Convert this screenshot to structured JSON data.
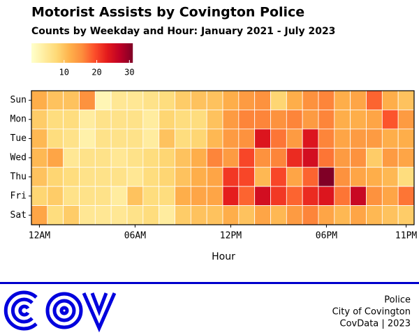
{
  "chart_data": {
    "type": "heatmap",
    "title": "Motorist Assists by Covington Police",
    "subtitle": "Counts by Weekday and Hour: January 2021 - July 2023",
    "x_label": "Hour",
    "x": [
      0,
      1,
      2,
      3,
      4,
      5,
      6,
      7,
      8,
      9,
      10,
      11,
      12,
      13,
      14,
      15,
      16,
      17,
      18,
      19,
      20,
      21,
      22,
      23
    ],
    "xlim": [
      -0.5,
      23.5
    ],
    "xticks": [
      {
        "value": 0,
        "label": "12AM"
      },
      {
        "value": 6,
        "label": "06AM"
      },
      {
        "value": 12,
        "label": "12PM"
      },
      {
        "value": 18,
        "label": "06PM"
      },
      {
        "value": 23,
        "label": "11PM"
      }
    ],
    "categories": [
      "Sun",
      "Mon",
      "Tue",
      "Wed",
      "Thu",
      "Fri",
      "Sat"
    ],
    "values": [
      [
        12,
        10,
        10,
        15,
        2,
        5,
        5,
        6,
        7,
        9,
        10,
        10,
        12,
        14,
        15,
        8,
        12,
        15,
        16,
        12,
        13,
        18,
        12,
        10
      ],
      [
        9,
        7,
        7,
        4,
        6,
        6,
        6,
        4,
        8,
        7,
        7,
        10,
        14,
        16,
        16,
        15,
        16,
        14,
        16,
        12,
        12,
        13,
        19,
        14
      ],
      [
        11,
        7,
        6,
        3,
        6,
        6,
        6,
        4,
        10,
        7,
        8,
        11,
        14,
        15,
        24,
        17,
        14,
        24,
        16,
        13,
        14,
        14,
        12,
        12
      ],
      [
        11,
        13,
        5,
        6,
        6,
        5,
        6,
        7,
        8,
        10,
        12,
        16,
        14,
        20,
        15,
        16,
        22,
        25,
        17,
        14,
        15,
        9,
        14,
        13
      ],
      [
        10,
        8,
        7,
        6,
        6,
        6,
        5,
        7,
        8,
        10,
        12,
        13,
        21,
        20,
        11,
        20,
        13,
        18,
        31,
        15,
        13,
        12,
        11,
        7
      ],
      [
        8,
        9,
        6,
        6,
        6,
        4,
        10,
        7,
        7,
        12,
        13,
        13,
        23,
        18,
        25,
        21,
        18,
        22,
        24,
        17,
        26,
        15,
        13,
        17
      ],
      [
        13,
        7,
        9,
        5,
        5,
        5,
        6,
        7,
        4,
        9,
        10,
        10,
        12,
        10,
        13,
        11,
        14,
        16,
        13,
        11,
        13,
        11,
        10,
        9
      ]
    ],
    "colors": [
      "#ffffcc",
      "#ffeda0",
      "#fed976",
      "#feb24c",
      "#fd8d3c",
      "#fc4e2a",
      "#e31a1c",
      "#bd0026",
      "#800026"
    ],
    "clim": [
      0,
      31
    ],
    "cticks": [
      10,
      20,
      30
    ]
  },
  "footer": {
    "lines": [
      "Police",
      "City of Covington",
      "CovData | 2023"
    ]
  }
}
